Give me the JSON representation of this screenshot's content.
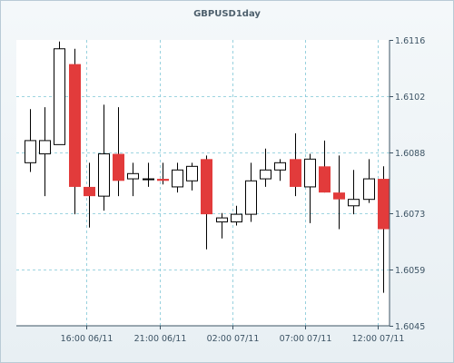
{
  "chart_data": {
    "type": "candlestick",
    "title": "GBPUSD1day",
    "ylim": [
      1.6045,
      1.6116
    ],
    "yticks": [
      "1.6116",
      "1.6102",
      "1.6088",
      "1.6073",
      "1.6059",
      "1.6045"
    ],
    "xticks": [
      "16:00 06/11",
      "21:00 06/11",
      "02:00 07/11",
      "07:00 07/11",
      "12:00 07/11"
    ],
    "grid": true,
    "colors": {
      "up": "#ffffff",
      "down": "#e23b3b",
      "wick": "#000000",
      "grid": "#7fc6d6"
    },
    "candles": [
      {
        "open": 1.60855,
        "high": 1.60988,
        "low": 1.60832,
        "close": 1.6091
      },
      {
        "open": 1.60877,
        "high": 1.60993,
        "low": 1.60772,
        "close": 1.6091
      },
      {
        "open": 1.609,
        "high": 1.61156,
        "low": 1.609,
        "close": 1.61138
      },
      {
        "open": 1.611,
        "high": 1.61138,
        "low": 1.60727,
        "close": 1.60795
      },
      {
        "open": 1.60795,
        "high": 1.60855,
        "low": 1.60694,
        "close": 1.60772
      },
      {
        "open": 1.60772,
        "high": 1.60999,
        "low": 1.60736,
        "close": 1.60877
      },
      {
        "open": 1.60877,
        "high": 1.60993,
        "low": 1.60772,
        "close": 1.6081
      },
      {
        "open": 1.60815,
        "high": 1.60855,
        "low": 1.60772,
        "close": 1.60828
      },
      {
        "open": 1.60815,
        "high": 1.60855,
        "low": 1.60795,
        "close": 1.60815
      },
      {
        "open": 1.60815,
        "high": 1.60855,
        "low": 1.60801,
        "close": 1.6081
      },
      {
        "open": 1.60795,
        "high": 1.60855,
        "low": 1.60781,
        "close": 1.60837
      },
      {
        "open": 1.6081,
        "high": 1.60855,
        "low": 1.60786,
        "close": 1.60846
      },
      {
        "open": 1.60864,
        "high": 1.60873,
        "low": 1.6064,
        "close": 1.60727
      },
      {
        "open": 1.60708,
        "high": 1.6073,
        "low": 1.60667,
        "close": 1.60718
      },
      {
        "open": 1.60708,
        "high": 1.60748,
        "low": 1.60699,
        "close": 1.60727
      },
      {
        "open": 1.60727,
        "high": 1.60855,
        "low": 1.60708,
        "close": 1.6081
      },
      {
        "open": 1.60815,
        "high": 1.6089,
        "low": 1.60795,
        "close": 1.60837
      },
      {
        "open": 1.60837,
        "high": 1.60864,
        "low": 1.6081,
        "close": 1.60855
      },
      {
        "open": 1.60864,
        "high": 1.60928,
        "low": 1.60772,
        "close": 1.60795
      },
      {
        "open": 1.60795,
        "high": 1.60877,
        "low": 1.60705,
        "close": 1.60864
      },
      {
        "open": 1.60846,
        "high": 1.6091,
        "low": 1.60781,
        "close": 1.60781
      },
      {
        "open": 1.60781,
        "high": 1.60873,
        "low": 1.6069,
        "close": 1.60764
      },
      {
        "open": 1.60748,
        "high": 1.60837,
        "low": 1.60727,
        "close": 1.60764
      },
      {
        "open": 1.60764,
        "high": 1.60864,
        "low": 1.60755,
        "close": 1.60815
      },
      {
        "open": 1.60815,
        "high": 1.60846,
        "low": 1.60532,
        "close": 1.6069
      }
    ]
  }
}
